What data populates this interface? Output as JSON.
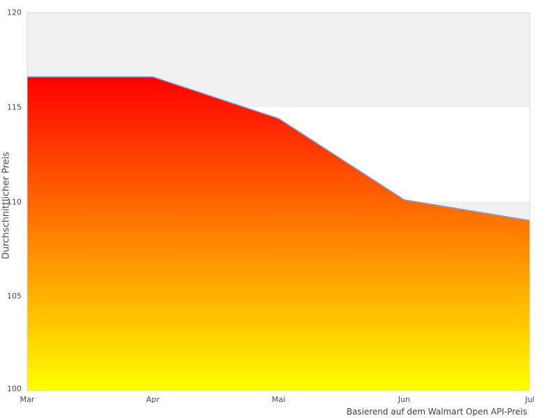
{
  "chart_data": {
    "type": "area",
    "title": "",
    "x_categories": [
      "Mar",
      "Apr",
      "Mai",
      "Jun",
      "Jul"
    ],
    "series": [
      {
        "name": "Durchschnittlicher Preis",
        "values": [
          116.6,
          116.6,
          114.4,
          110.1,
          109.0
        ]
      }
    ],
    "xlabel": "",
    "ylabel": "Durchschnittlicher Preis",
    "caption": "Basierend auf dem Walmart Open API-Preis",
    "ylim": [
      100,
      120
    ],
    "yticks": [
      100,
      105,
      110,
      115,
      120
    ],
    "ytick_step": 5,
    "legend": "none",
    "grid": "alternating-horizontal-bands",
    "colors": {
      "fill_top": "#ff0000",
      "fill_bottom": "#ffff00",
      "line": "#82a0d7",
      "band": "#f0f0f0",
      "plot_bg": "#ffffff",
      "border": "#d9d9d9",
      "text": "#474747"
    }
  }
}
